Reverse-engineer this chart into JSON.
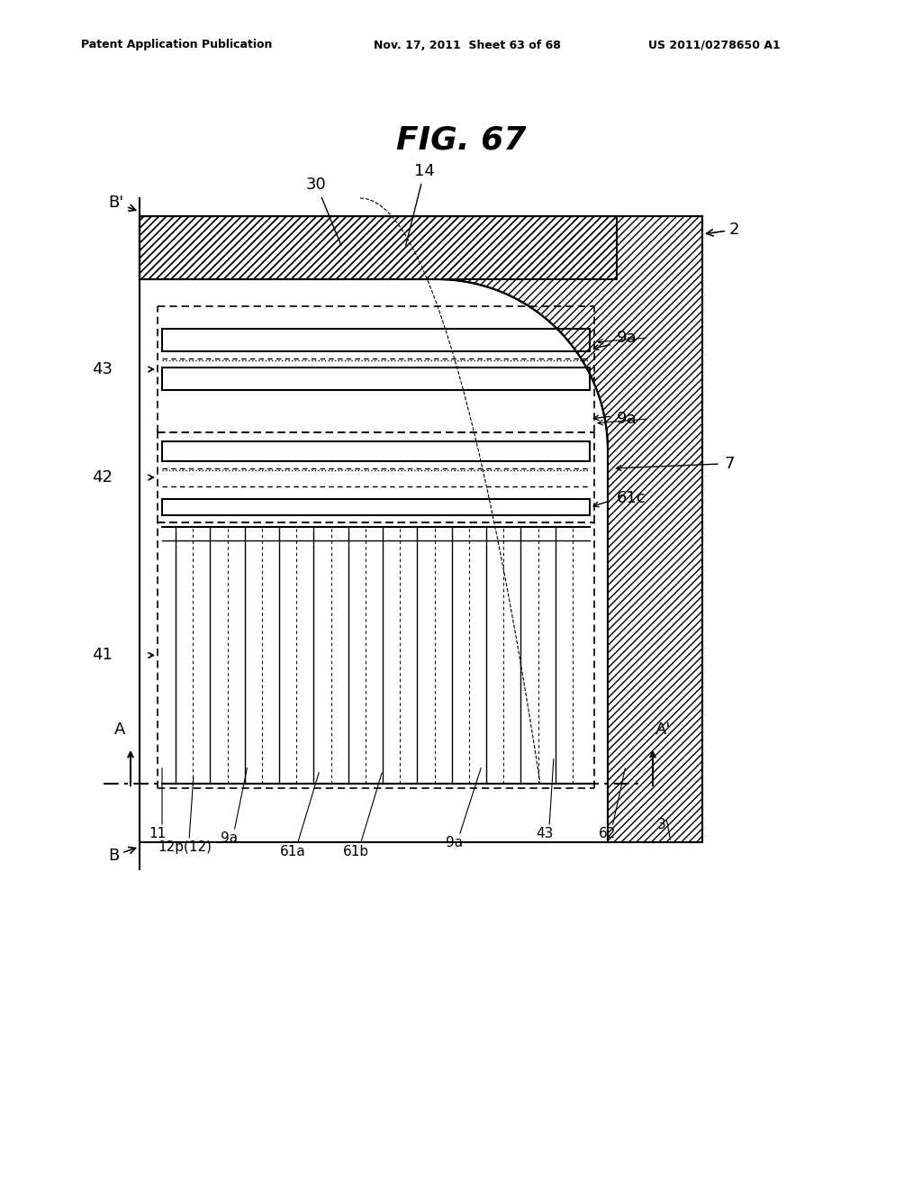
{
  "title": "FIG. 67",
  "header_left": "Patent Application Publication",
  "header_mid": "Nov. 17, 2011  Sheet 63 of 68",
  "header_right": "US 2011/0278650 A1",
  "bg_color": "#ffffff",
  "line_color": "#000000",
  "hatch_color": "#000000",
  "labels": {
    "B_prime": "B'",
    "B": "B",
    "A": "A",
    "A_prime": "A'",
    "num_2": "2",
    "num_7": "7",
    "num_30": "30",
    "num_14": "14",
    "num_43_top": "43",
    "num_9a_top": "9a",
    "num_9a_mid": "9a",
    "num_42": "42",
    "num_61c": "61c",
    "num_41": "41",
    "num_11": "11",
    "num_9a_bot1": "9a",
    "num_12p": "12p(12)",
    "num_61a": "61a",
    "num_61b": "61b",
    "num_9a_bot2": "9a",
    "num_43_bot": "43",
    "num_62": "62",
    "num_3": "3"
  }
}
